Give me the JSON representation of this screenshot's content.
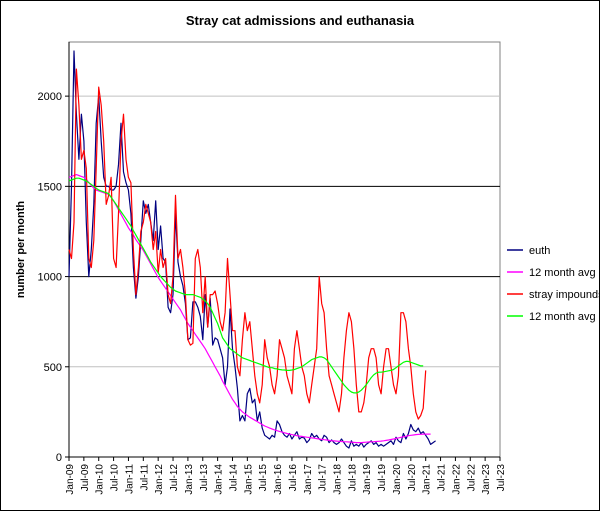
{
  "chart_data": {
    "type": "line",
    "title": "Stray cat admissions and euthanasia",
    "xlabel": "",
    "ylabel": "number per month",
    "ylim": [
      0,
      2300
    ],
    "yticks": [
      0,
      500,
      1000,
      1500,
      2000
    ],
    "major_gridlines": [
      500,
      1000,
      1500,
      2000
    ],
    "x_tick_labels": [
      "Jan-09",
      "Jul-09",
      "Jan-10",
      "Jul-10",
      "Jan-11",
      "Jul-11",
      "Jan-12",
      "Jul-12",
      "Jan-13",
      "Jul-13",
      "Jan-14",
      "Jul-14",
      "Jan-15",
      "Jul-15",
      "Jan-16",
      "Jul-16",
      "Jan-17",
      "Jul-17",
      "Jan-18",
      "Jul-18",
      "Jan-19",
      "Jul-19",
      "Jan-20",
      "Jul-20",
      "Jan-21",
      "Jul-21",
      "Jan-22",
      "Jul-22",
      "Jan-23",
      "Jul-23"
    ],
    "legend_position": "right",
    "series": [
      {
        "name": "euth",
        "color": "#000080",
        "monthly": [
          1000,
          1500,
          2250,
          1900,
          1650,
          1900,
          1750,
          1300,
          1000,
          1150,
          1400,
          1850,
          2000,
          1750,
          1550,
          1500,
          1500,
          1480,
          1480,
          1500,
          1620,
          1850,
          1580,
          1520,
          1480,
          1350,
          1050,
          880,
          1000,
          1200,
          1420,
          1350,
          1400,
          1300,
          1200,
          1420,
          1150,
          1280,
          1100,
          1080,
          830,
          800,
          900,
          1350,
          1080,
          1000,
          950,
          850,
          650,
          660,
          860,
          860,
          830,
          780,
          650,
          900,
          720,
          880,
          620,
          660,
          650,
          600,
          550,
          400,
          500,
          820,
          600,
          500,
          380,
          200,
          230,
          200,
          350,
          380,
          300,
          320,
          200,
          250,
          160,
          120,
          110,
          100,
          120,
          110,
          200,
          180,
          140,
          120,
          110,
          130,
          100,
          120,
          140,
          100,
          110,
          105,
          80,
          95,
          130,
          110,
          120,
          100,
          90,
          120,
          110,
          80,
          95,
          80,
          70,
          80,
          100,
          80,
          60,
          50,
          90,
          60,
          70,
          60,
          80,
          55,
          70,
          80,
          90,
          70,
          80,
          60,
          70,
          60,
          70,
          80,
          90,
          70,
          110,
          90,
          80,
          130,
          100,
          130,
          180,
          150,
          140,
          160,
          130,
          140,
          120,
          100,
          70,
          80,
          90
        ]
      },
      {
        "name": "12 month avg",
        "color": "#ff00ff",
        "monthly": [
          1550,
          1555,
          1560,
          1565,
          1560,
          1555,
          1550,
          1540,
          1520,
          1505,
          1490,
          1480,
          1475,
          1470,
          1465,
          1460,
          1455,
          1440,
          1420,
          1395,
          1370,
          1345,
          1320,
          1295,
          1270,
          1250,
          1230,
          1205,
          1185,
          1165,
          1145,
          1120,
          1095,
          1070,
          1045,
          1020,
          995,
          975,
          955,
          935,
          915,
          895,
          875,
          855,
          835,
          815,
          790,
          765,
          740,
          720,
          700,
          680,
          660,
          640,
          620,
          600,
          575,
          550,
          525,
          500,
          475,
          450,
          420,
          395,
          370,
          345,
          320,
          300,
          280,
          265,
          250,
          240,
          230,
          220,
          212,
          204,
          196,
          188,
          180,
          172,
          166,
          160,
          155,
          150,
          146,
          142,
          138,
          134,
          130,
          127,
          124,
          121,
          118,
          116,
          114,
          112,
          110,
          108,
          106,
          104,
          102,
          100,
          98,
          96,
          94,
          92,
          90,
          89,
          88,
          87,
          86,
          85,
          84,
          83,
          82,
          81,
          80,
          80,
          80,
          81,
          82,
          83,
          84,
          85,
          86,
          87,
          88,
          90,
          92,
          94,
          97,
          100,
          103,
          106,
          109,
          112,
          115,
          118,
          120,
          122,
          124,
          125,
          126,
          127,
          127,
          127,
          127
        ]
      },
      {
        "name": "stray impounds",
        "color": "#ff0000",
        "monthly": [
          1150,
          1100,
          1300,
          2150,
          1950,
          1650,
          1700,
          1600,
          1100,
          1050,
          1200,
          1600,
          2050,
          1950,
          1750,
          1400,
          1450,
          1550,
          1100,
          1050,
          1350,
          1750,
          1900,
          1650,
          1550,
          1520,
          1150,
          900,
          1050,
          1250,
          1300,
          1400,
          1350,
          1300,
          1150,
          1250,
          1020,
          1150,
          1050,
          1100,
          900,
          850,
          1000,
          1450,
          1100,
          1150,
          1050,
          900,
          650,
          620,
          630,
          1100,
          1150,
          1050,
          800,
          1000,
          720,
          900,
          900,
          920,
          850,
          750,
          700,
          800,
          1100,
          900,
          700,
          700,
          500,
          450,
          650,
          800,
          700,
          750,
          600,
          450,
          350,
          300,
          400,
          650,
          550,
          500,
          400,
          350,
          450,
          650,
          600,
          550,
          450,
          400,
          350,
          600,
          700,
          600,
          500,
          450,
          350,
          300,
          400,
          500,
          600,
          1000,
          850,
          800,
          600,
          450,
          400,
          350,
          300,
          250,
          350,
          550,
          700,
          800,
          750,
          600,
          400,
          250,
          250,
          300,
          400,
          550,
          600,
          600,
          550,
          400,
          350,
          500,
          600,
          600,
          500,
          400,
          350,
          450,
          800,
          800,
          750,
          600,
          500,
          350,
          250,
          210,
          230,
          270,
          480
        ]
      },
      {
        "name": "12 month avg",
        "color": "#00ff00",
        "monthly": [
          1530,
          1535,
          1540,
          1545,
          1545,
          1540,
          1535,
          1530,
          1520,
          1510,
          1500,
          1490,
          1480,
          1475,
          1470,
          1465,
          1460,
          1440,
          1420,
          1400,
          1380,
          1360,
          1340,
          1320,
          1300,
          1280,
          1255,
          1230,
          1205,
          1180,
          1155,
          1130,
          1105,
          1080,
          1060,
          1040,
          1020,
          1000,
          985,
          970,
          955,
          940,
          930,
          920,
          915,
          910,
          905,
          900,
          900,
          900,
          900,
          895,
          890,
          885,
          875,
          865,
          850,
          830,
          800,
          770,
          740,
          700,
          660,
          640,
          620,
          600,
          590,
          580,
          570,
          560,
          550,
          545,
          540,
          535,
          530,
          525,
          520,
          515,
          510,
          505,
          500,
          495,
          495,
          490,
          488,
          485,
          483,
          482,
          480,
          480,
          482,
          485,
          490,
          495,
          500,
          510,
          520,
          530,
          540,
          545,
          550,
          555,
          555,
          550,
          540,
          520,
          500,
          480,
          460,
          440,
          420,
          400,
          385,
          370,
          360,
          355,
          355,
          360,
          370,
          385,
          400,
          420,
          440,
          455,
          465,
          470,
          470,
          472,
          475,
          478,
          480,
          485,
          495,
          505,
          515,
          525,
          530,
          530,
          525,
          520,
          515,
          510,
          505,
          505
        ]
      }
    ]
  }
}
